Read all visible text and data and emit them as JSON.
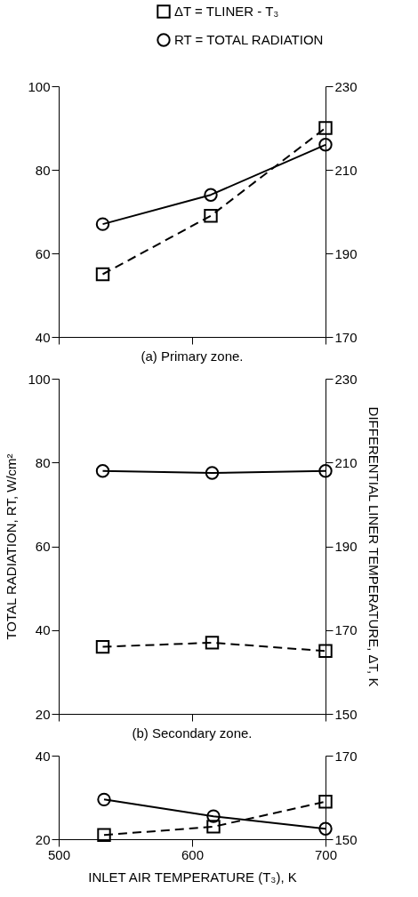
{
  "chart_data": [
    {
      "type": "line",
      "title": "(a) Primary zone.",
      "x": [
        533,
        614,
        700
      ],
      "xlim": [
        500,
        700
      ],
      "xticks": [
        500,
        600,
        700
      ],
      "ylim": [
        40,
        100
      ],
      "yticks": [
        40,
        60,
        80,
        100
      ],
      "y2lim": [
        170,
        230
      ],
      "y2ticks": [
        170,
        190,
        210,
        230
      ],
      "tick_labels": "y",
      "grid": false,
      "legend": "top right",
      "series": [
        {
          "name": "ΔT = TLINER - T₃",
          "color": "#000000",
          "values": [
            185,
            199,
            220
          ],
          "axis": "y2",
          "marker": "square",
          "line_style": "dashed"
        },
        {
          "name": "RT = TOTAL RADIATION",
          "color": "#000000",
          "values": [
            67,
            74,
            86
          ],
          "axis": "y",
          "marker": "circle",
          "line_style": "solid"
        }
      ]
    },
    {
      "type": "line",
      "title": "(b) Secondary zone.",
      "y2label": "DIFFERENTIAL LINER TEMPERATURE, ΔT, K",
      "ylabel": "TOTAL RADIATION, RT, W/cm²",
      "x": [
        533,
        615,
        700
      ],
      "xlim": [
        500,
        700
      ],
      "xticks": [
        500,
        600,
        700
      ],
      "ylim": [
        20,
        100
      ],
      "yticks": [
        20,
        40,
        60,
        80,
        100
      ],
      "y2lim": [
        150,
        230
      ],
      "y2ticks": [
        150,
        170,
        190,
        210,
        230
      ],
      "tick_labels": "y",
      "grid": false,
      "series": [
        {
          "color": "#000000",
          "values": [
            166,
            167,
            165
          ],
          "axis": "y2",
          "marker": "square",
          "line_style": "dashed"
        },
        {
          "color": "#000000",
          "values": [
            78,
            77.5,
            78
          ],
          "axis": "y",
          "marker": "circle",
          "line_style": "solid"
        }
      ]
    },
    {
      "type": "line",
      "xlabel": "INLET AIR TEMPERATURE (T₃), K",
      "x": [
        534,
        616,
        700
      ],
      "xlim": [
        500,
        700
      ],
      "xticks": [
        500,
        600,
        700
      ],
      "ylim": [
        20,
        40
      ],
      "yticks": [
        20,
        40
      ],
      "y2lim": [
        150,
        170
      ],
      "y2ticks": [
        150,
        170
      ],
      "grid": false,
      "series": [
        {
          "color": "#000000",
          "values": [
            151,
            153,
            159
          ],
          "axis": "y2",
          "marker": "square",
          "line_style": "dashed"
        },
        {
          "color": "#000000",
          "values": [
            29.5,
            25.5,
            22.5
          ],
          "axis": "y",
          "marker": "circle",
          "line_style": "solid"
        }
      ]
    }
  ]
}
